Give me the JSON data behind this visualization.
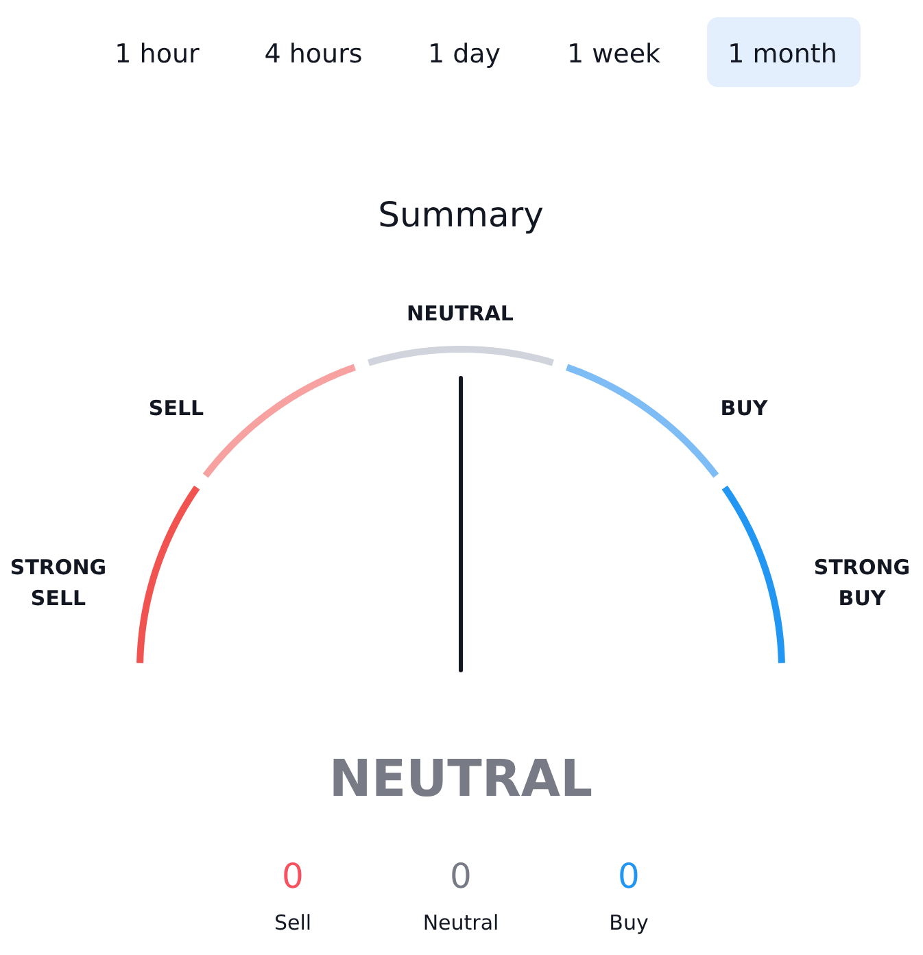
{
  "chart_data": {
    "type": "donut",
    "title": "Summary",
    "categories": [
      "STRONG SELL",
      "SELL",
      "NEUTRAL",
      "BUY",
      "STRONG BUY"
    ],
    "values": [
      20,
      20,
      20,
      20,
      20
    ],
    "colors": [
      "#f05350",
      "#f7a1a1",
      "#d1d4dc",
      "#7dbcf5",
      "#2196f3"
    ],
    "needle": "NEUTRAL",
    "annotations": [
      "1 hour",
      "4 hours",
      "1 day",
      "1 week",
      "1 month",
      "0",
      "Sell",
      "0",
      "Neutral",
      "0",
      "Buy"
    ]
  }
}
